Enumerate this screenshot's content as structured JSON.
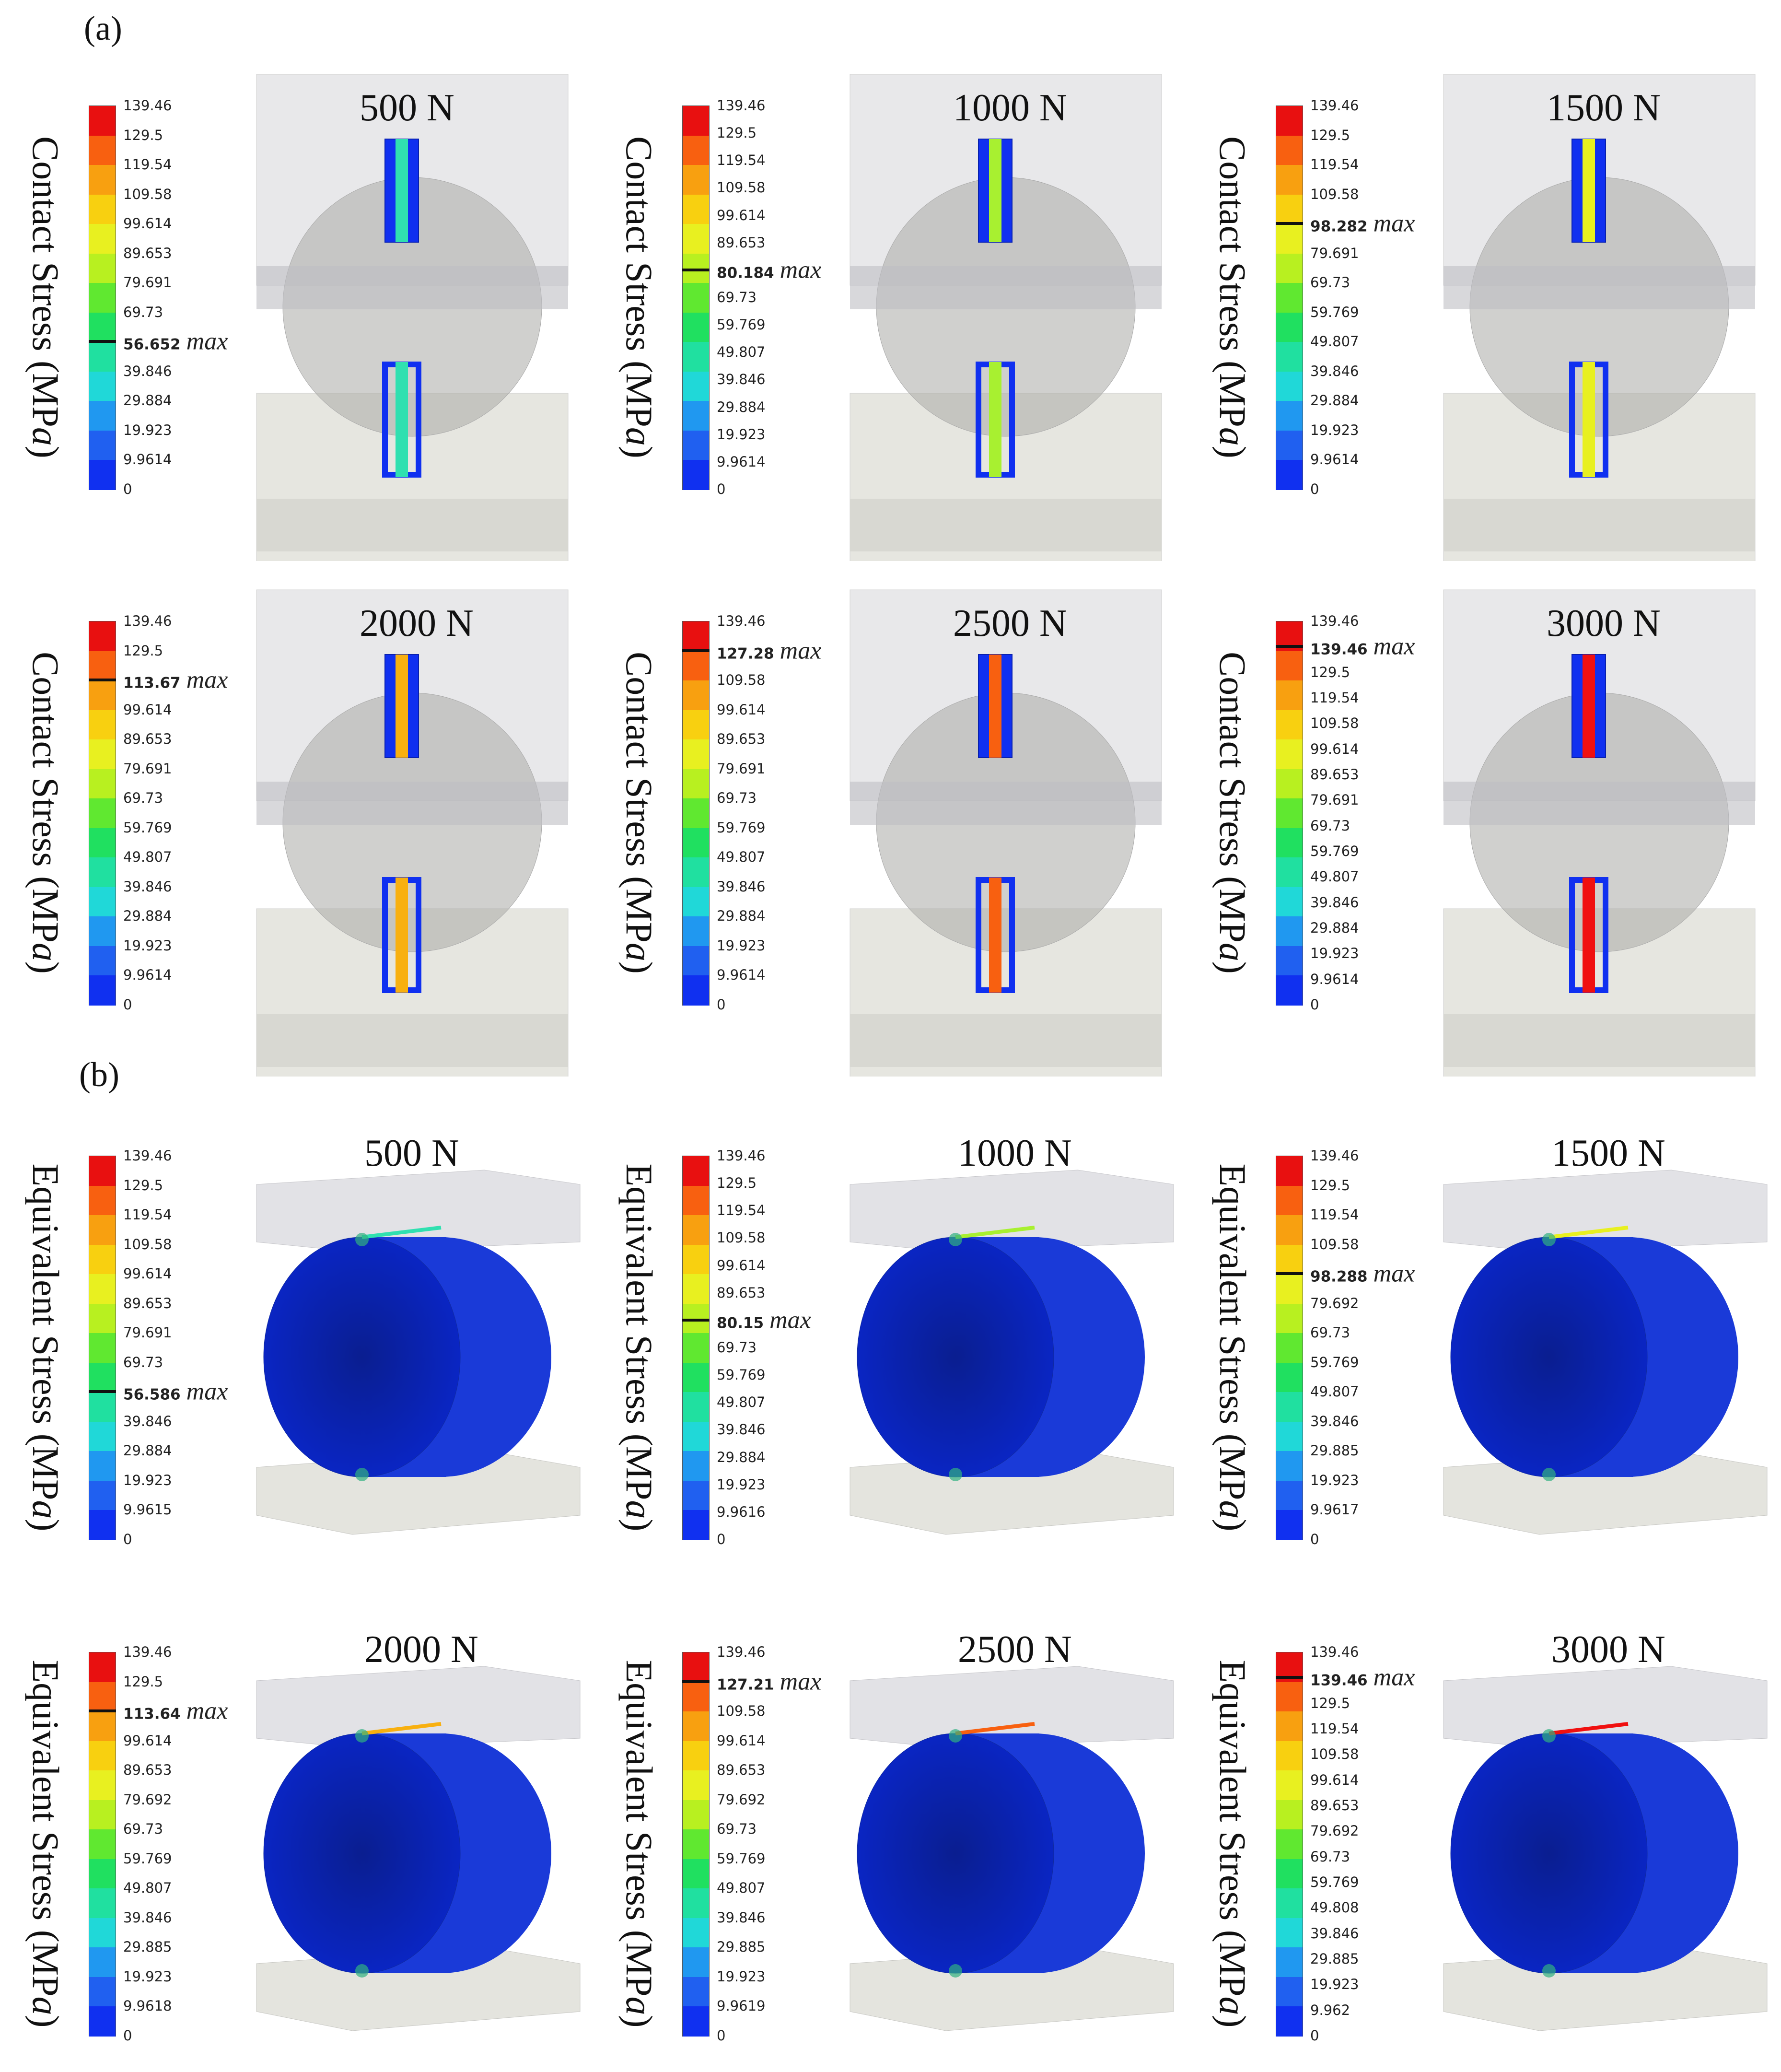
{
  "sections": [
    {
      "id": "a",
      "label": "(a)",
      "axis_title_main": "Contact  Stress (MP",
      "axis_title_unit": "a",
      "axis_title_close": ")",
      "view": "section",
      "panels": [
        {
          "force": "500 N",
          "max_value": "56.652",
          "max_tag": "max",
          "ticks": [
            "139.46",
            "129.5",
            "119.54",
            "109.58",
            "99.614",
            "89.653",
            "79.691",
            "69.73",
            "56.652",
            "39.846",
            "29.884",
            "19.923",
            "9.9614",
            "0"
          ],
          "stress_color": "#30e0b0"
        },
        {
          "force": "1000 N",
          "max_value": "80.184",
          "max_tag": "max",
          "ticks": [
            "139.46",
            "129.5",
            "119.54",
            "109.58",
            "99.614",
            "89.653",
            "80.184",
            "69.73",
            "59.769",
            "49.807",
            "39.846",
            "29.884",
            "19.923",
            "9.9614",
            "0"
          ],
          "stress_color": "#a8f030"
        },
        {
          "force": "1500 N",
          "max_value": "98.282",
          "max_tag": "max",
          "ticks": [
            "139.46",
            "129.5",
            "119.54",
            "109.58",
            "98.282",
            "79.691",
            "69.73",
            "59.769",
            "49.807",
            "39.846",
            "29.884",
            "19.923",
            "9.9614",
            "0"
          ],
          "stress_color": "#e8f020"
        },
        {
          "force": "2000 N",
          "max_value": "113.67",
          "max_tag": "max",
          "ticks": [
            "139.46",
            "129.5",
            "113.67",
            "99.614",
            "89.653",
            "79.691",
            "69.73",
            "59.769",
            "49.807",
            "39.846",
            "29.884",
            "19.923",
            "9.9614",
            "0"
          ],
          "stress_color": "#f8b010"
        },
        {
          "force": "2500 N",
          "max_value": "127.28",
          "max_tag": "max",
          "ticks": [
            "139.46",
            "127.28",
            "109.58",
            "99.614",
            "89.653",
            "79.691",
            "69.73",
            "59.769",
            "49.807",
            "39.846",
            "29.884",
            "19.923",
            "9.9614",
            "0"
          ],
          "stress_color": "#f86010"
        },
        {
          "force": "3000 N",
          "max_value": "139.46",
          "max_tag": "max",
          "ticks": [
            "139.46",
            "139.46",
            "129.5",
            "119.54",
            "109.58",
            "99.614",
            "89.653",
            "79.691",
            "69.73",
            "59.769",
            "49.807",
            "39.846",
            "29.884",
            "19.923",
            "9.9614",
            "0"
          ],
          "stress_color": "#f01010"
        }
      ]
    },
    {
      "id": "b",
      "label": "(b)",
      "axis_title_main": "Equivalent  Stress (MP",
      "axis_title_unit": "a",
      "axis_title_close": ")",
      "view": "3d",
      "panels": [
        {
          "force": "500 N",
          "max_value": "56.586",
          "max_tag": "max",
          "ticks": [
            "139.46",
            "129.5",
            "119.54",
            "109.58",
            "99.614",
            "89.653",
            "79.691",
            "69.73",
            "56.586",
            "39.846",
            "29.884",
            "19.923",
            "9.9615",
            "0"
          ],
          "stress_color": "#30e0b0"
        },
        {
          "force": "1000 N",
          "max_value": "80.15",
          "max_tag": "max",
          "ticks": [
            "139.46",
            "129.5",
            "119.54",
            "109.58",
            "99.614",
            "89.653",
            "80.15",
            "69.73",
            "59.769",
            "49.807",
            "39.846",
            "29.884",
            "19.923",
            "9.9616",
            "0"
          ],
          "stress_color": "#a8f030"
        },
        {
          "force": "1500 N",
          "max_value": "98.288",
          "max_tag": "max",
          "ticks": [
            "139.46",
            "129.5",
            "119.54",
            "109.58",
            "98.288",
            "79.692",
            "69.73",
            "59.769",
            "49.807",
            "39.846",
            "29.885",
            "19.923",
            "9.9617",
            "0"
          ],
          "stress_color": "#e8f020"
        },
        {
          "force": "2000 N",
          "max_value": "113.64",
          "max_tag": "max",
          "ticks": [
            "139.46",
            "129.5",
            "113.64",
            "99.614",
            "89.653",
            "79.692",
            "69.73",
            "59.769",
            "49.807",
            "39.846",
            "29.885",
            "19.923",
            "9.9618",
            "0"
          ],
          "stress_color": "#f8b010"
        },
        {
          "force": "2500 N",
          "max_value": "127.21",
          "max_tag": "max",
          "ticks": [
            "139.46",
            "127.21",
            "109.58",
            "99.614",
            "89.653",
            "79.692",
            "69.73",
            "59.769",
            "49.807",
            "39.846",
            "29.885",
            "19.923",
            "9.9619",
            "0"
          ],
          "stress_color": "#f86010"
        },
        {
          "force": "3000 N",
          "max_value": "139.46",
          "max_tag": "max",
          "ticks": [
            "139.46",
            "139.46",
            "129.5",
            "119.54",
            "109.58",
            "99.614",
            "89.653",
            "79.692",
            "69.73",
            "59.769",
            "49.808",
            "39.846",
            "29.885",
            "19.923",
            "9.962",
            "0"
          ],
          "stress_color": "#f01010"
        }
      ]
    }
  ],
  "colorbar_colors": [
    "#e81010",
    "#f86010",
    "#f8a010",
    "#f8d010",
    "#e8f020",
    "#b8f020",
    "#60e830",
    "#20e060",
    "#20e0a0",
    "#20d8d8",
    "#2098f0",
    "#2060f0",
    "#1030f0"
  ]
}
